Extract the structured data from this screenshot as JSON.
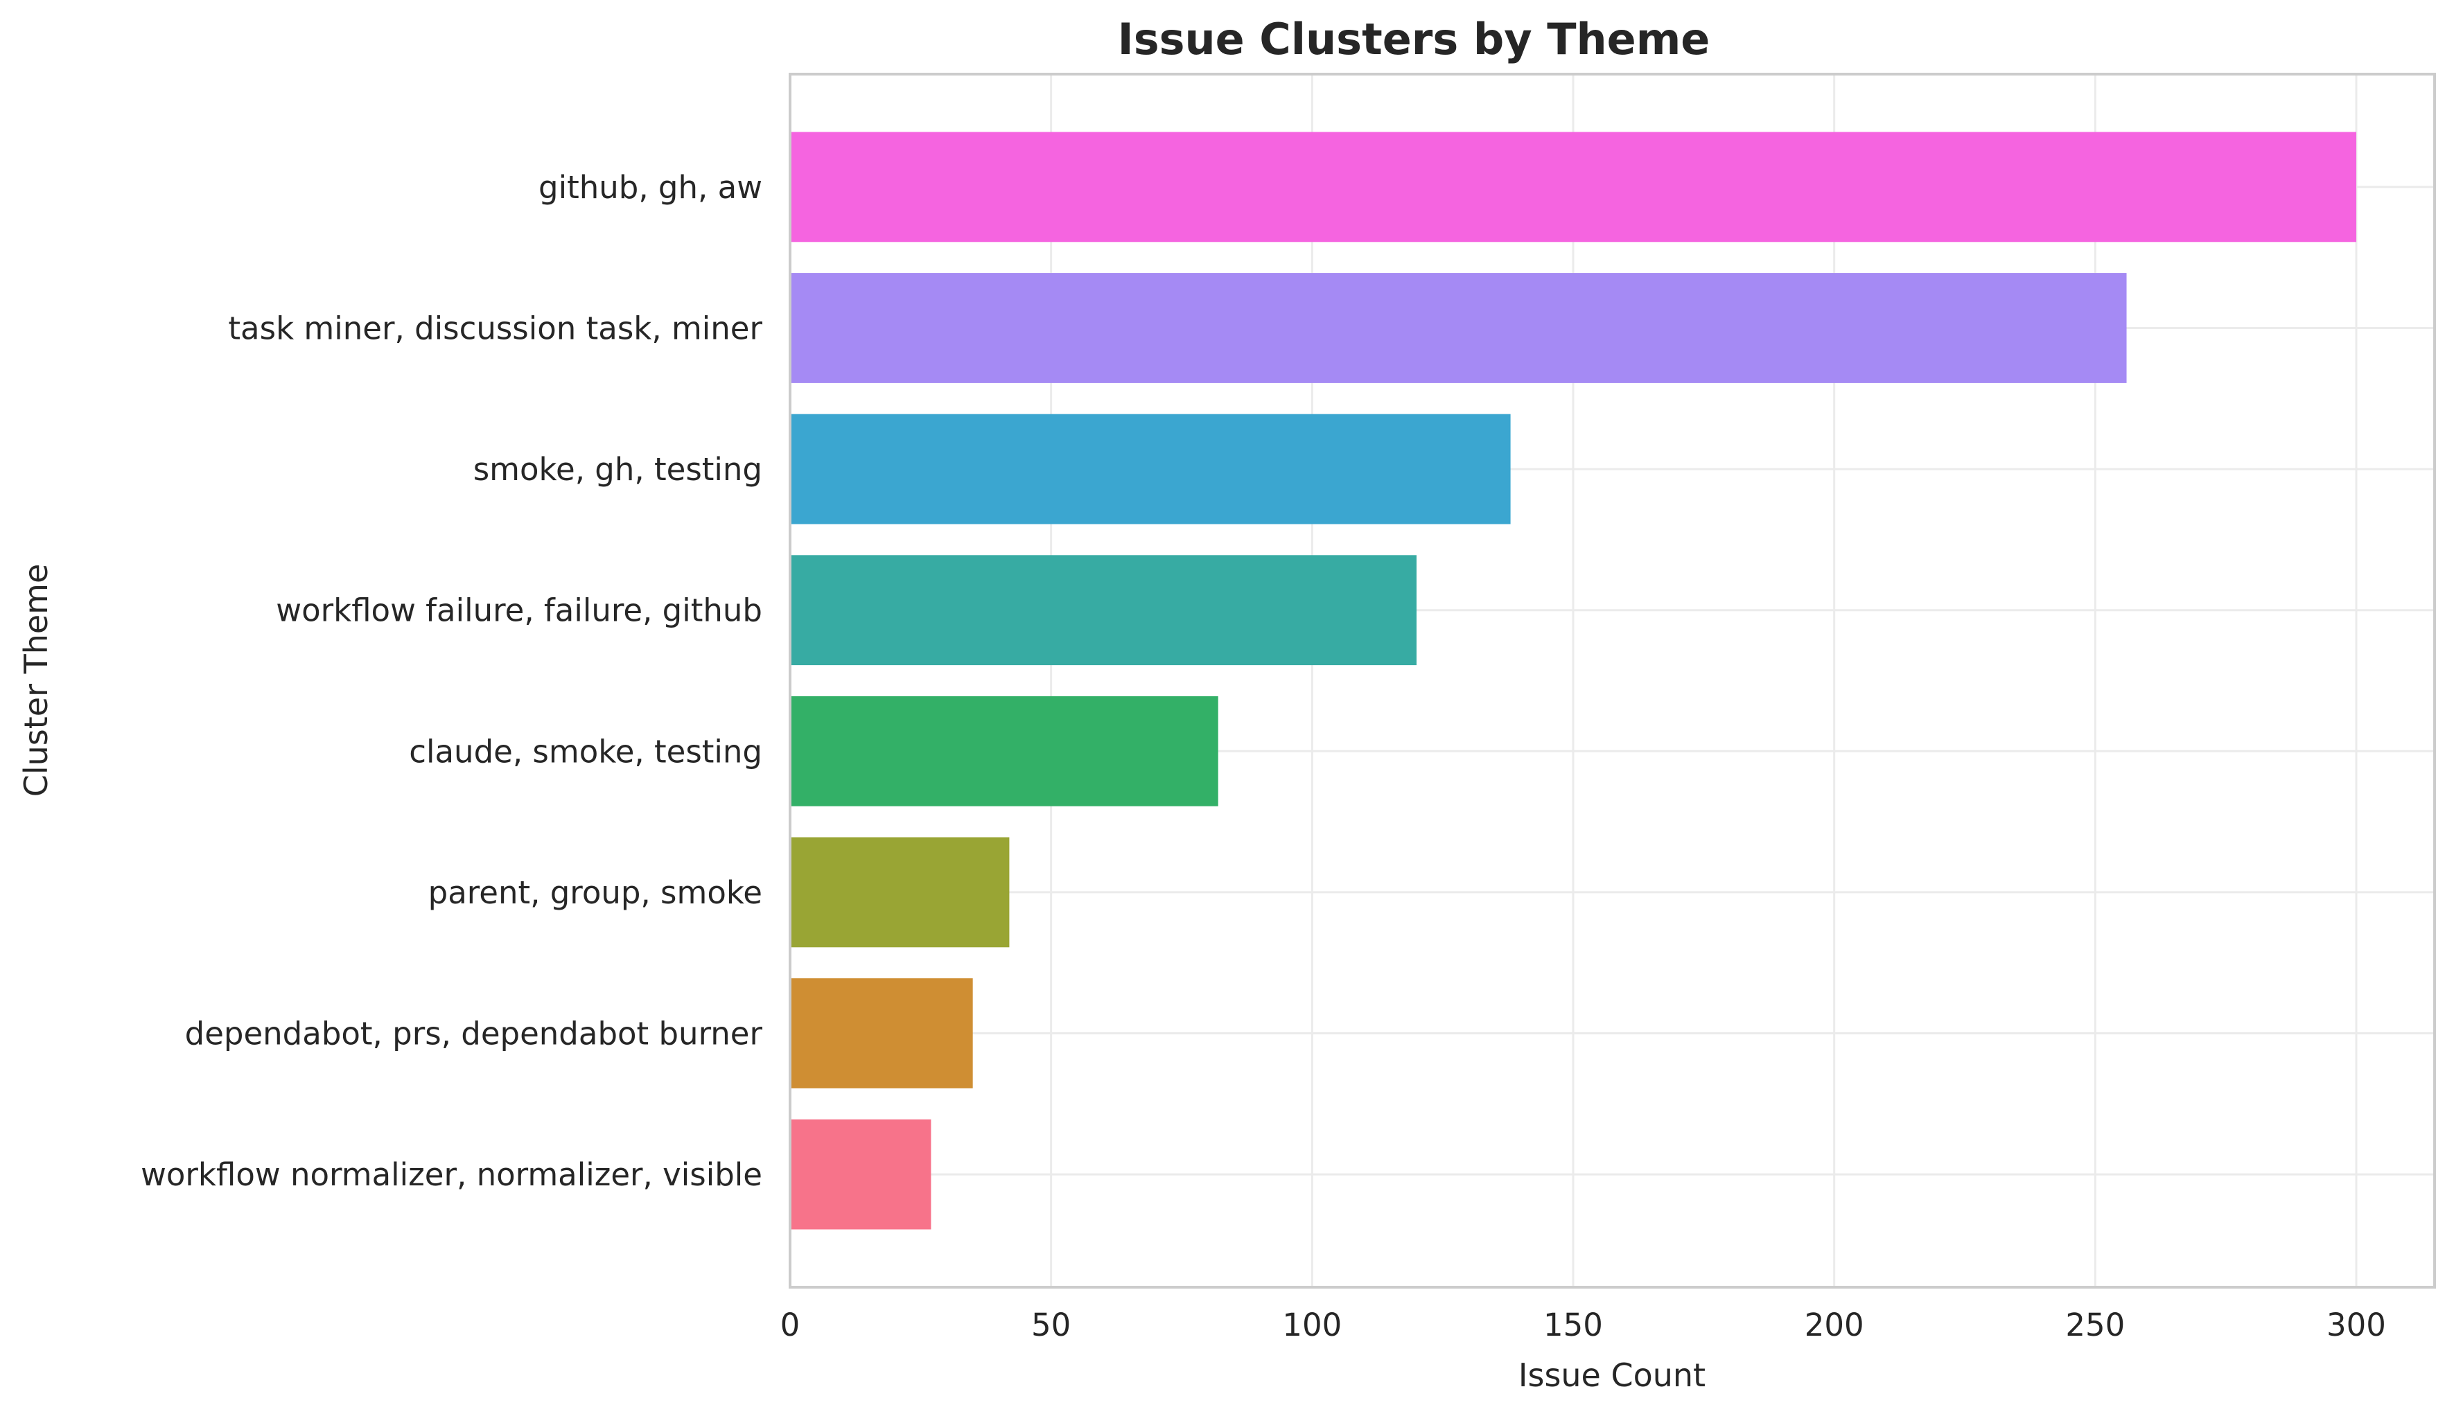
{
  "chart_data": {
    "type": "bar",
    "orientation": "horizontal",
    "title": "Issue Clusters by Theme",
    "xlabel": "Issue Count",
    "ylabel": "Cluster Theme",
    "xlim": [
      0,
      315
    ],
    "xticks": [
      0,
      50,
      100,
      150,
      200,
      250,
      300
    ],
    "grid": true,
    "legend": "none",
    "categories": [
      "github, gh, aw",
      "task miner, discussion task, miner",
      "smoke, gh, testing",
      "workflow failure, failure, github",
      "claude, smoke, testing",
      "parent, group, smoke",
      "dependabot, prs, dependabot burner",
      "workflow normalizer, normalizer, visible"
    ],
    "values": [
      300,
      256,
      138,
      120,
      82,
      42,
      35,
      27
    ],
    "colors": [
      "#f564e0",
      "#a58af4",
      "#3ba6d0",
      "#37aba3",
      "#33b067",
      "#99a534",
      "#cf8e33",
      "#f7738a"
    ]
  }
}
